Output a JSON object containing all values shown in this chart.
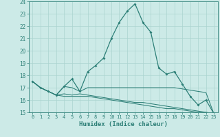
{
  "xlabel": "Humidex (Indice chaleur)",
  "x": [
    0,
    1,
    2,
    3,
    4,
    5,
    6,
    7,
    8,
    9,
    10,
    11,
    12,
    13,
    14,
    15,
    16,
    17,
    18,
    19,
    20,
    21,
    22,
    23
  ],
  "line1": [
    17.5,
    17.0,
    16.7,
    16.4,
    17.1,
    17.7,
    16.7,
    18.3,
    18.8,
    19.4,
    21.0,
    22.3,
    23.2,
    23.8,
    22.3,
    21.5,
    18.6,
    18.1,
    18.3,
    17.3,
    16.3,
    15.6,
    16.0,
    14.9
  ],
  "line2": [
    17.5,
    17.0,
    16.7,
    16.4,
    17.1,
    17.0,
    16.7,
    17.0,
    17.0,
    17.0,
    17.0,
    17.0,
    17.0,
    17.0,
    17.0,
    17.0,
    17.0,
    17.0,
    17.0,
    16.9,
    16.8,
    16.7,
    16.6,
    14.9
  ],
  "line3": [
    17.5,
    17.0,
    16.7,
    16.4,
    16.5,
    16.4,
    16.5,
    16.4,
    16.3,
    16.2,
    16.1,
    16.0,
    15.9,
    15.8,
    15.8,
    15.7,
    15.6,
    15.5,
    15.4,
    15.3,
    15.2,
    15.1,
    15.0,
    14.9
  ],
  "line4": [
    17.5,
    17.0,
    16.7,
    16.4,
    16.3,
    16.3,
    16.3,
    16.3,
    16.2,
    16.1,
    16.0,
    15.9,
    15.8,
    15.7,
    15.6,
    15.5,
    15.4,
    15.3,
    15.3,
    15.2,
    15.1,
    15.0,
    15.0,
    14.9
  ],
  "color": "#2d7f77",
  "bg_color": "#cceae7",
  "grid_color": "#aad4d0",
  "ylim": [
    15,
    24
  ],
  "yticks": [
    15,
    16,
    17,
    18,
    19,
    20,
    21,
    22,
    23,
    24
  ],
  "xlim": [
    -0.5,
    23.5
  ]
}
